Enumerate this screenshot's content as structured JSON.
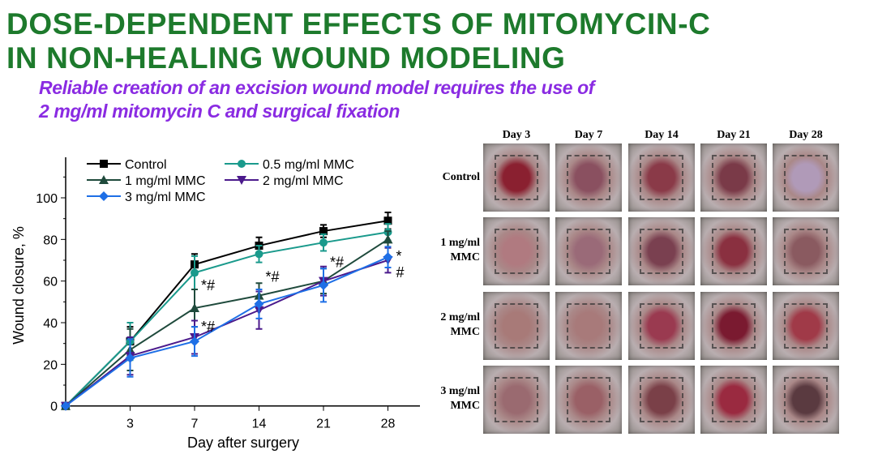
{
  "title": {
    "line1": "DOSE-DEPENDENT EFFECTS OF MITOMYCIN-C",
    "line2": "IN NON-HEALING WOUND MODELING"
  },
  "subtitle": {
    "line1": "Reliable creation of an excision wound model requires the use of",
    "line2": "2 mg/ml mitomycin C and surgical fixation"
  },
  "chart_data": {
    "type": "line",
    "xlabel": "Day after surgery",
    "ylabel": "Wound closure, %",
    "x": [
      0,
      3,
      7,
      14,
      21,
      28
    ],
    "xticks": [
      "3",
      "7",
      "14",
      "21",
      "28"
    ],
    "yticks": [
      "0",
      "20",
      "40",
      "60",
      "80",
      "100"
    ],
    "ylim": [
      0,
      115
    ],
    "legend": "top-left",
    "series": [
      {
        "name": "Control",
        "color": "#000000",
        "marker": "square",
        "values": [
          0,
          31,
          68,
          77,
          84,
          89
        ],
        "errors": [
          0,
          7,
          5,
          4,
          3,
          4
        ]
      },
      {
        "name": "0.5 mg/ml MMC",
        "color": "#1a9a8c",
        "marker": "circle",
        "values": [
          0,
          31,
          64,
          73,
          78.5,
          83.5
        ],
        "errors": [
          0,
          9,
          8,
          4,
          4,
          4
        ]
      },
      {
        "name": "1 mg/ml MMC",
        "color": "#1f4a3c",
        "marker": "triangle-up",
        "values": [
          0,
          27,
          47,
          53,
          60,
          80
        ],
        "errors": [
          0,
          10,
          9,
          6,
          6,
          4
        ]
      },
      {
        "name": "2 mg/ml MMC",
        "color": "#4b1a8c",
        "marker": "triangle-down",
        "values": [
          0,
          24,
          33,
          46,
          60,
          70
        ],
        "errors": [
          0,
          9,
          8,
          9,
          7,
          6
        ]
      },
      {
        "name": "3 mg/ml MMC",
        "color": "#1e6fe6",
        "marker": "diamond",
        "values": [
          0,
          23,
          31,
          49,
          58,
          71.5
        ],
        "errors": [
          0,
          9,
          7,
          7,
          8,
          5
        ]
      }
    ],
    "annotations": [
      {
        "text": "*#",
        "x": 7,
        "y": 58
      },
      {
        "text": "*#",
        "x": 7,
        "y": 38
      },
      {
        "text": "*#",
        "x": 14,
        "y": 62
      },
      {
        "text": "*#",
        "x": 21,
        "y": 69
      },
      {
        "text": "*",
        "x": 28,
        "y": 72
      },
      {
        "text": "#",
        "x": 28,
        "y": 67
      }
    ]
  },
  "photos": {
    "columns": [
      "Day 3",
      "Day 7",
      "Day 14",
      "Day 21",
      "Day 28"
    ],
    "rows": [
      {
        "l1": "Control",
        "l2": ""
      },
      {
        "l1": "1 mg/ml",
        "l2": "MMC"
      },
      {
        "l1": "2 mg/ml",
        "l2": "MMC"
      },
      {
        "l1": "3 mg/ml",
        "l2": "MMC"
      }
    ]
  }
}
